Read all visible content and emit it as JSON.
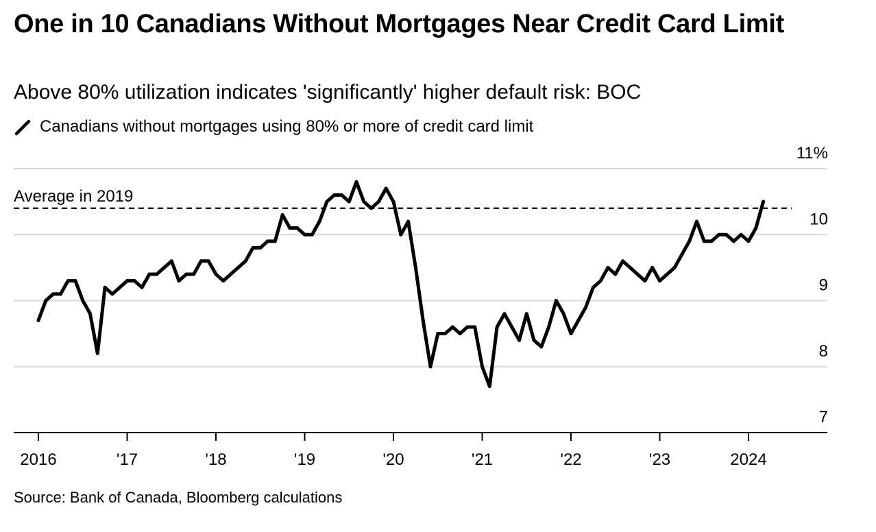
{
  "title": "One in 10 Canadians Without Mortgages Near Credit Card Limit",
  "subtitle": "Above 80% utilization indicates 'significantly' higher default risk: BOC",
  "legend": {
    "label": "Canadians without mortgages using 80% or more of credit card limit",
    "icon": "diagonal-line-icon"
  },
  "source": "Source: Bank of Canada, Bloomberg calculations",
  "colors": {
    "line": "#000000",
    "grid": "#d9d9d9",
    "axis": "#000000",
    "background": "#ffffff"
  },
  "chart_data": {
    "type": "line",
    "title": "One in 10 Canadians Without Mortgages Near Credit Card Limit",
    "subtitle": "Above 80% utilization indicates 'significantly' higher default risk: BOC",
    "xlabel": "",
    "ylabel": "",
    "y_unit": "%",
    "ylim": [
      7,
      11
    ],
    "xlim": [
      "2016-01",
      "2024-12"
    ],
    "y_axis_position": "right",
    "grid": true,
    "legend_position": "top-left",
    "y_ticks": [
      {
        "value": 7,
        "label": "7"
      },
      {
        "value": 8,
        "label": "8"
      },
      {
        "value": 9,
        "label": "9"
      },
      {
        "value": 10,
        "label": "10"
      },
      {
        "value": 11,
        "label": "11%"
      }
    ],
    "x_ticks": [
      {
        "date": "2016-01",
        "label": "2016"
      },
      {
        "date": "2017-01",
        "label": "'17"
      },
      {
        "date": "2018-01",
        "label": "'18"
      },
      {
        "date": "2019-01",
        "label": "'19"
      },
      {
        "date": "2020-01",
        "label": "'20"
      },
      {
        "date": "2021-01",
        "label": "'21"
      },
      {
        "date": "2022-01",
        "label": "'22"
      },
      {
        "date": "2023-01",
        "label": "'23"
      },
      {
        "date": "2024-01",
        "label": "2024"
      }
    ],
    "reference_lines": [
      {
        "label": "Average in 2019",
        "value": 10.4,
        "style": "dashed"
      }
    ],
    "series": [
      {
        "name": "Canadians without mortgages using 80% or more of credit card limit",
        "x": [
          "2016-01",
          "2016-02",
          "2016-03",
          "2016-04",
          "2016-05",
          "2016-06",
          "2016-07",
          "2016-08",
          "2016-09",
          "2016-10",
          "2016-11",
          "2016-12",
          "2017-01",
          "2017-02",
          "2017-03",
          "2017-04",
          "2017-05",
          "2017-06",
          "2017-07",
          "2017-08",
          "2017-09",
          "2017-10",
          "2017-11",
          "2017-12",
          "2018-01",
          "2018-02",
          "2018-03",
          "2018-04",
          "2018-05",
          "2018-06",
          "2018-07",
          "2018-08",
          "2018-09",
          "2018-10",
          "2018-11",
          "2018-12",
          "2019-01",
          "2019-02",
          "2019-03",
          "2019-04",
          "2019-05",
          "2019-06",
          "2019-07",
          "2019-08",
          "2019-09",
          "2019-10",
          "2019-11",
          "2019-12",
          "2020-01",
          "2020-02",
          "2020-03",
          "2020-04",
          "2020-05",
          "2020-06",
          "2020-07",
          "2020-08",
          "2020-09",
          "2020-10",
          "2020-11",
          "2020-12",
          "2021-01",
          "2021-02",
          "2021-03",
          "2021-04",
          "2021-05",
          "2021-06",
          "2021-07",
          "2021-08",
          "2021-09",
          "2021-10",
          "2021-11",
          "2021-12",
          "2022-01",
          "2022-02",
          "2022-03",
          "2022-04",
          "2022-05",
          "2022-06",
          "2022-07",
          "2022-08",
          "2022-09",
          "2022-10",
          "2022-11",
          "2022-12",
          "2023-01",
          "2023-02",
          "2023-03",
          "2023-04",
          "2023-05",
          "2023-06",
          "2023-07",
          "2023-08",
          "2023-09",
          "2023-10",
          "2023-11",
          "2023-12",
          "2024-01",
          "2024-02",
          "2024-03"
        ],
        "y": [
          8.7,
          9.0,
          9.1,
          9.1,
          9.3,
          9.3,
          9.0,
          8.8,
          8.2,
          9.2,
          9.1,
          9.2,
          9.3,
          9.3,
          9.2,
          9.4,
          9.4,
          9.5,
          9.6,
          9.3,
          9.4,
          9.4,
          9.6,
          9.6,
          9.4,
          9.3,
          9.4,
          9.5,
          9.6,
          9.8,
          9.8,
          9.9,
          9.9,
          10.3,
          10.1,
          10.1,
          10.0,
          10.0,
          10.2,
          10.5,
          10.6,
          10.6,
          10.5,
          10.8,
          10.5,
          10.4,
          10.5,
          10.7,
          10.5,
          10.0,
          10.2,
          9.5,
          8.7,
          8.0,
          8.5,
          8.5,
          8.6,
          8.5,
          8.6,
          8.6,
          8.0,
          7.7,
          8.6,
          8.8,
          8.6,
          8.4,
          8.8,
          8.4,
          8.3,
          8.6,
          9.0,
          8.8,
          8.5,
          8.7,
          8.9,
          9.2,
          9.3,
          9.5,
          9.4,
          9.6,
          9.5,
          9.4,
          9.3,
          9.5,
          9.3,
          9.4,
          9.5,
          9.7,
          9.9,
          10.2,
          9.9,
          9.9,
          10.0,
          10.0,
          9.9,
          10.0,
          9.9,
          10.1,
          10.5
        ]
      }
    ]
  }
}
